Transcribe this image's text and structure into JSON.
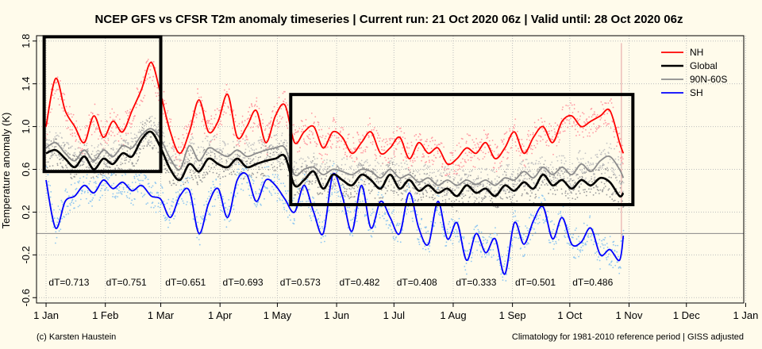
{
  "chart_data": {
    "type": "line",
    "title": "NCEP GFS vs CFSR T2m anomaly timeseries | Current run: 21 Oct 2020 06z | Valid until: 28 Oct 2020 06z",
    "ylabel": "Temperature anomaly (K)",
    "xlabel": "",
    "ylim": [
      -0.65,
      1.85
    ],
    "xlim_days": [
      -5,
      365
    ],
    "y_ticks": [
      -0.6,
      -0.2,
      0.2,
      0.6,
      1.0,
      1.4,
      1.8
    ],
    "y_tick_labels": [
      "-0.6",
      "-0.2",
      "0.2",
      "0.6",
      "1.0",
      "1.4",
      "1.8"
    ],
    "x_ticks": [
      {
        "day": 0,
        "label": "1 Jan"
      },
      {
        "day": 31,
        "label": "1 Feb"
      },
      {
        "day": 60,
        "label": "1 Mar"
      },
      {
        "day": 91,
        "label": "1 Apr"
      },
      {
        "day": 121,
        "label": "1 May"
      },
      {
        "day": 152,
        "label": "1 Jun"
      },
      {
        "day": 182,
        "label": "1 Jul"
      },
      {
        "day": 213,
        "label": "1 Aug"
      },
      {
        "day": 244,
        "label": "1 Sep"
      },
      {
        "day": 274,
        "label": "1 Oct"
      },
      {
        "day": 305,
        "label": "1 Nov"
      },
      {
        "day": 335,
        "label": "1 Dec"
      },
      {
        "day": 366,
        "label": "1 Jan"
      }
    ],
    "grid": true,
    "zero_line": true,
    "legend_position": "top-right",
    "series": [
      {
        "name": "NH",
        "color": "#ff0000",
        "x": [
          0,
          5,
          10,
          15,
          20,
          25,
          30,
          35,
          40,
          45,
          50,
          55,
          60,
          65,
          70,
          75,
          80,
          85,
          90,
          95,
          100,
          105,
          110,
          115,
          120,
          125,
          130,
          135,
          140,
          145,
          150,
          155,
          160,
          165,
          170,
          175,
          180,
          185,
          190,
          195,
          200,
          205,
          210,
          215,
          220,
          225,
          230,
          235,
          240,
          245,
          250,
          255,
          260,
          265,
          270,
          275,
          280,
          285,
          290,
          295,
          300,
          302
        ],
        "y": [
          1.0,
          1.45,
          1.15,
          1.0,
          0.85,
          1.1,
          0.9,
          1.05,
          0.95,
          1.15,
          1.35,
          1.6,
          1.3,
          0.95,
          0.75,
          0.95,
          1.25,
          0.95,
          1.05,
          1.3,
          0.9,
          1.0,
          1.15,
          0.85,
          1.1,
          1.2,
          0.85,
          0.95,
          1.0,
          0.8,
          0.95,
          0.9,
          0.75,
          0.85,
          0.95,
          0.75,
          0.8,
          0.9,
          0.7,
          0.85,
          0.75,
          0.8,
          0.65,
          0.7,
          0.8,
          0.75,
          0.85,
          0.7,
          0.8,
          0.95,
          0.75,
          0.9,
          1.0,
          0.85,
          1.05,
          1.1,
          1.0,
          1.05,
          1.1,
          1.15,
          0.85,
          0.75
        ]
      },
      {
        "name": "Global",
        "color": "#000000",
        "x": [
          0,
          5,
          10,
          15,
          20,
          25,
          30,
          35,
          40,
          45,
          50,
          55,
          60,
          65,
          70,
          75,
          80,
          85,
          90,
          95,
          100,
          105,
          110,
          115,
          120,
          125,
          130,
          135,
          140,
          145,
          150,
          155,
          160,
          165,
          170,
          175,
          180,
          185,
          190,
          195,
          200,
          205,
          210,
          215,
          220,
          225,
          230,
          235,
          240,
          245,
          250,
          255,
          260,
          265,
          270,
          275,
          280,
          285,
          290,
          295,
          300,
          302
        ],
        "y": [
          0.75,
          0.78,
          0.7,
          0.62,
          0.72,
          0.6,
          0.7,
          0.65,
          0.75,
          0.72,
          0.88,
          0.95,
          0.8,
          0.6,
          0.5,
          0.65,
          0.58,
          0.7,
          0.65,
          0.62,
          0.7,
          0.62,
          0.65,
          0.68,
          0.7,
          0.72,
          0.45,
          0.5,
          0.58,
          0.42,
          0.55,
          0.5,
          0.45,
          0.55,
          0.5,
          0.42,
          0.55,
          0.42,
          0.5,
          0.4,
          0.45,
          0.38,
          0.42,
          0.35,
          0.45,
          0.38,
          0.42,
          0.35,
          0.45,
          0.4,
          0.48,
          0.42,
          0.55,
          0.45,
          0.5,
          0.42,
          0.5,
          0.45,
          0.52,
          0.48,
          0.35,
          0.38
        ]
      },
      {
        "name": "90N-60S",
        "color": "#8c8c8c",
        "x": [
          0,
          5,
          10,
          15,
          20,
          25,
          30,
          35,
          40,
          45,
          50,
          55,
          60,
          65,
          70,
          75,
          80,
          85,
          90,
          95,
          100,
          105,
          110,
          115,
          120,
          125,
          130,
          135,
          140,
          145,
          150,
          155,
          160,
          165,
          170,
          175,
          180,
          185,
          190,
          195,
          200,
          205,
          210,
          215,
          220,
          225,
          230,
          235,
          240,
          245,
          250,
          255,
          260,
          265,
          270,
          275,
          280,
          285,
          290,
          295,
          300,
          302
        ],
        "y": [
          0.8,
          0.85,
          0.75,
          0.68,
          0.78,
          0.68,
          0.78,
          0.72,
          0.82,
          0.8,
          0.92,
          0.98,
          0.88,
          0.7,
          0.6,
          0.82,
          0.68,
          0.8,
          0.76,
          0.72,
          0.78,
          0.72,
          0.75,
          0.78,
          0.8,
          0.8,
          0.55,
          0.6,
          0.62,
          0.55,
          0.6,
          0.58,
          0.55,
          0.6,
          0.58,
          0.52,
          0.6,
          0.52,
          0.55,
          0.48,
          0.52,
          0.45,
          0.5,
          0.45,
          0.5,
          0.46,
          0.5,
          0.45,
          0.52,
          0.5,
          0.58,
          0.52,
          0.62,
          0.55,
          0.62,
          0.55,
          0.65,
          0.58,
          0.68,
          0.72,
          0.6,
          0.52
        ]
      },
      {
        "name": "SH",
        "color": "#0000ff",
        "x": [
          0,
          5,
          10,
          15,
          20,
          25,
          30,
          35,
          40,
          45,
          50,
          55,
          60,
          65,
          70,
          75,
          80,
          85,
          90,
          95,
          100,
          105,
          110,
          115,
          120,
          125,
          130,
          135,
          140,
          145,
          150,
          155,
          160,
          165,
          170,
          175,
          180,
          185,
          190,
          195,
          200,
          205,
          210,
          215,
          220,
          225,
          230,
          235,
          240,
          245,
          250,
          255,
          260,
          265,
          270,
          275,
          280,
          285,
          290,
          295,
          300,
          302
        ],
        "y": [
          0.5,
          0.05,
          0.3,
          0.35,
          0.45,
          0.38,
          0.5,
          0.42,
          0.48,
          0.4,
          0.45,
          0.35,
          0.32,
          0.15,
          0.35,
          0.4,
          0.0,
          0.28,
          0.42,
          0.15,
          0.5,
          0.55,
          0.3,
          0.5,
          0.45,
          0.32,
          0.2,
          0.45,
          0.2,
          0.0,
          0.55,
          0.35,
          0.02,
          0.45,
          0.05,
          0.3,
          0.15,
          0.0,
          0.38,
          0.05,
          -0.1,
          0.3,
          -0.05,
          0.1,
          -0.25,
          0.0,
          -0.18,
          -0.05,
          -0.38,
          0.1,
          -0.1,
          0.12,
          0.25,
          -0.05,
          0.15,
          -0.1,
          -0.08,
          0.05,
          -0.2,
          -0.15,
          -0.25,
          -0.02
        ]
      }
    ],
    "dt_labels": [
      {
        "day": 12,
        "text": "dT=0.713"
      },
      {
        "day": 42,
        "text": "dT=0.751"
      },
      {
        "day": 73,
        "text": "dT=0.651"
      },
      {
        "day": 103,
        "text": "dT=0.693"
      },
      {
        "day": 133,
        "text": "dT=0.573"
      },
      {
        "day": 164,
        "text": "dT=0.482"
      },
      {
        "day": 194,
        "text": "dT=0.408"
      },
      {
        "day": 225,
        "text": "dT=0.333"
      },
      {
        "day": 256,
        "text": "dT=0.501"
      },
      {
        "day": 286,
        "text": "dT=0.486"
      }
    ],
    "highlight_boxes": [
      {
        "x0": -1,
        "x1": 60,
        "y0": 0.58,
        "y1": 1.84
      },
      {
        "x0": 128,
        "x1": 307,
        "y0": 0.27,
        "y1": 1.3
      }
    ],
    "current_day_line": 301
  },
  "footer": {
    "left": "(c) Karsten Haustein",
    "right": "Climatology for 1981-2010 reference period | GISS adjusted"
  }
}
